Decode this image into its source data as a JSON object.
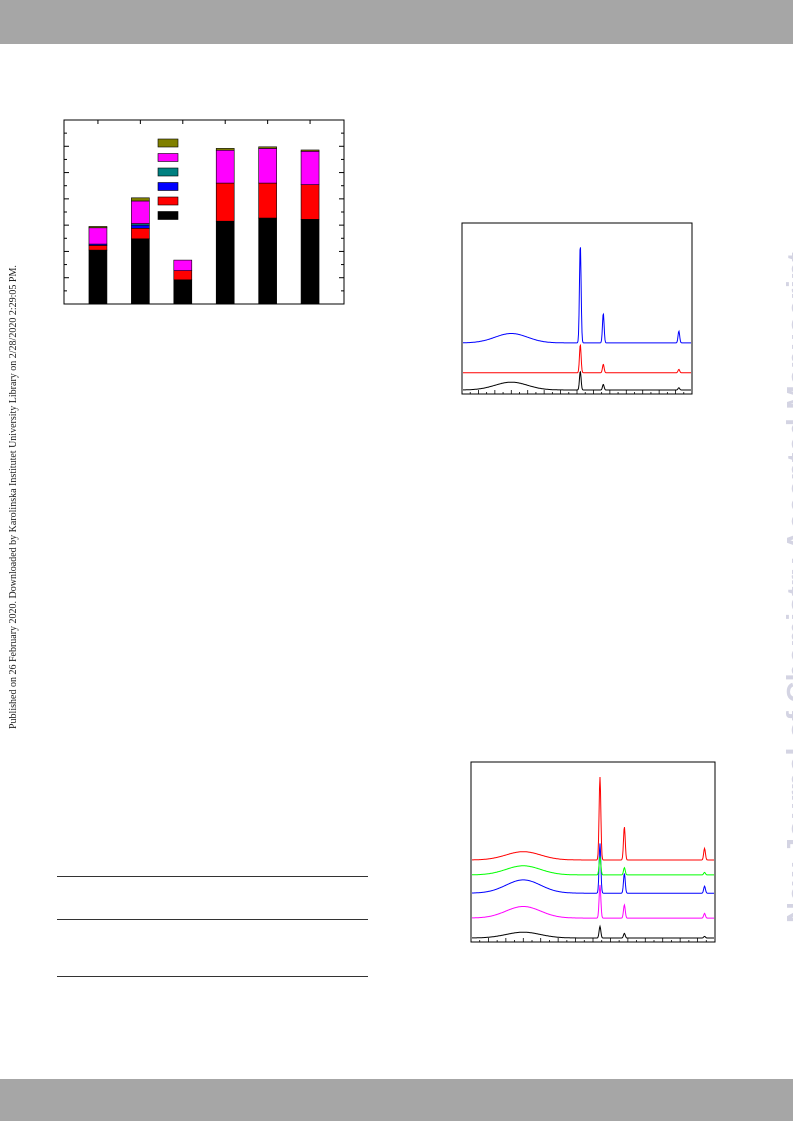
{
  "side_note": "Published on 26 February 2020. Downloaded by Karolinska Institutet University Library on 2/28/2020 2:29:05 PM.",
  "watermark": "New Journal of Chemistry Accepted Manuscript",
  "colors": {
    "header_bar": "#a6a6a6",
    "watermark": "#d4d4e3",
    "black": "#000000",
    "red": "#ff0000",
    "blue": "#0000ff",
    "teal": "#008080",
    "magenta": "#ff00ff",
    "olive": "#808000",
    "green": "#00ff00"
  },
  "chart_data": [
    {
      "type": "bar",
      "stacked": true,
      "categories": [
        "",
        "",
        "",
        "",
        "",
        ""
      ],
      "ylim": [
        0,
        7
      ],
      "legend_placement": "top-center",
      "series": [
        {
          "color": "#000000",
          "values": [
            2.05,
            2.48,
            0.92,
            3.15,
            3.27,
            3.22
          ]
        },
        {
          "color": "#ff0000",
          "values": [
            0.18,
            0.4,
            0.35,
            1.45,
            1.33,
            1.32
          ]
        },
        {
          "color": "#0000ff",
          "values": [
            0.05,
            0.12,
            0.0,
            0.0,
            0.0,
            0.0
          ]
        },
        {
          "color": "#008080",
          "values": [
            0.0,
            0.06,
            0.0,
            0.0,
            0.0,
            0.0
          ]
        },
        {
          "color": "#ff00ff",
          "values": [
            0.62,
            0.86,
            0.4,
            1.25,
            1.32,
            1.27
          ]
        },
        {
          "color": "#808000",
          "values": [
            0.05,
            0.12,
            0.0,
            0.07,
            0.06,
            0.05
          ]
        }
      ]
    },
    {
      "type": "line",
      "xlim": [
        10,
        80
      ],
      "peaks": [
        {
          "x": 46,
          "rel": 1.0
        },
        {
          "x": 53,
          "rel": 0.3
        },
        {
          "x": 76,
          "rel": 0.12
        }
      ],
      "series": [
        {
          "color": "#000000",
          "offset": 0,
          "scale": 0.12,
          "hump": 0.05
        },
        {
          "color": "#ff0000",
          "offset": 0.11,
          "scale": 0.18,
          "hump": 0.0
        },
        {
          "color": "#0000ff",
          "offset": 0.3,
          "scale": 0.63,
          "hump": 0.06
        }
      ]
    },
    {
      "type": "line",
      "xlim": [
        10,
        80
      ],
      "peaks": [
        {
          "x": 47,
          "rel": 1.0
        },
        {
          "x": 54,
          "rel": 0.4
        },
        {
          "x": 77,
          "rel": 0.14
        }
      ],
      "series": [
        {
          "color": "#000000",
          "offset": 0,
          "scale": 0.07,
          "hump": 0.035
        },
        {
          "color": "#ff00ff",
          "offset": 0.12,
          "scale": 0.2,
          "hump": 0.07
        },
        {
          "color": "#0000ff",
          "offset": 0.27,
          "scale": 0.3,
          "hump": 0.08
        },
        {
          "color": "#00ff00",
          "offset": 0.38,
          "scale": 0.11,
          "hump": 0.055
        },
        {
          "color": "#ff0000",
          "offset": 0.47,
          "scale": 0.5,
          "hump": 0.05
        }
      ]
    }
  ]
}
